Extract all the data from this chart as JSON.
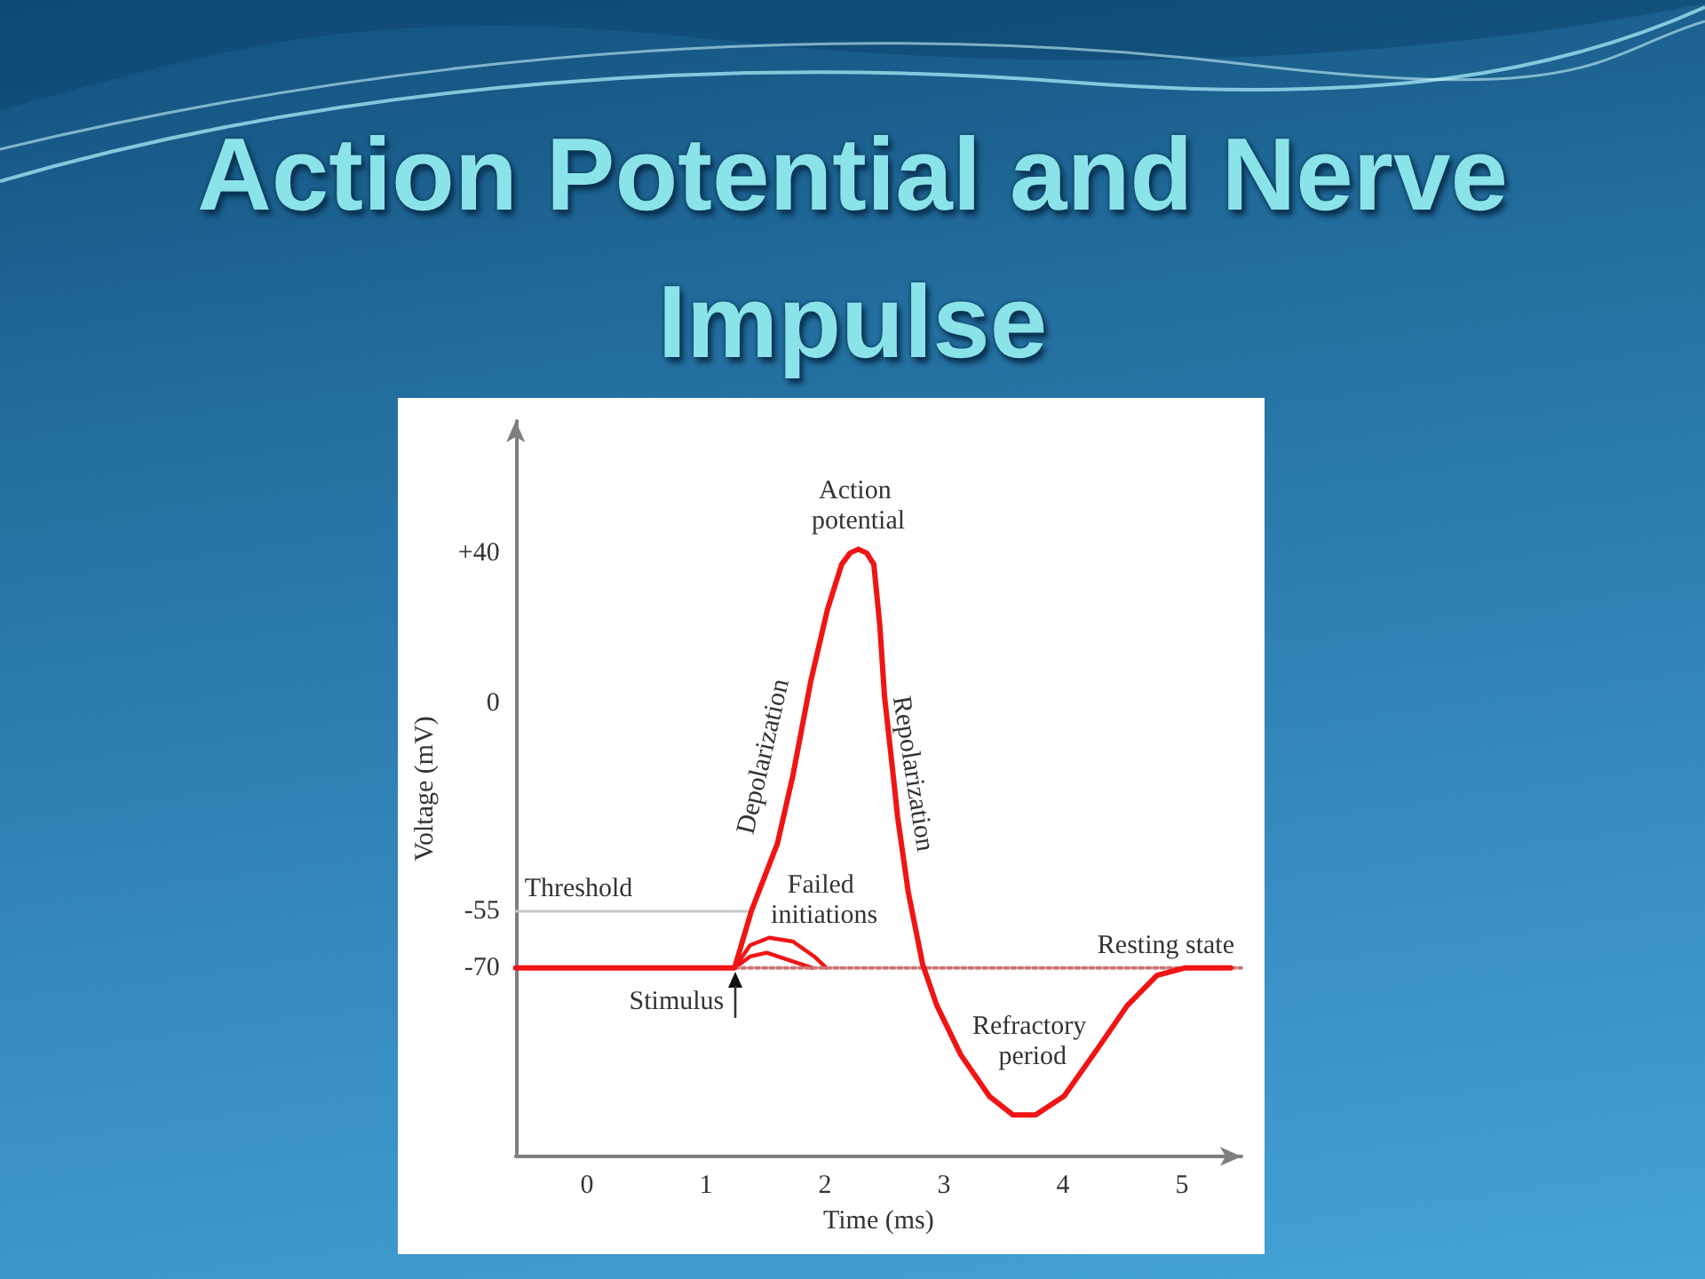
{
  "chart_data": {
    "type": "line",
    "title": "Action Potential and Nerve Impulse",
    "xlabel": "Time (ms)",
    "ylabel": "Voltage (mV)",
    "xlim": [
      -0.6,
      5.5
    ],
    "xticks": [
      0,
      1,
      2,
      3,
      4,
      5
    ],
    "ylim": [
      -120,
      75
    ],
    "yticks": [
      {
        "value": 40,
        "label": "+40"
      },
      0,
      -55,
      -70
    ],
    "grid": false,
    "legend": false,
    "marker": "none",
    "series": [
      {
        "color": "#f01414",
        "x": [
          -0.6,
          1.24,
          1.38,
          1.6,
          1.73,
          1.88,
          2.02,
          2.14,
          2.21,
          2.28,
          2.35,
          2.41,
          2.46,
          2.5,
          2.58,
          2.61,
          2.7,
          2.82,
          2.94,
          3.14,
          3.38,
          3.58,
          3.77,
          4.01,
          4.3,
          4.54,
          4.79,
          5.03,
          5.41
        ],
        "values": [
          -70,
          -70,
          -55,
          -37,
          -19,
          6,
          25,
          37,
          40,
          41,
          40,
          37,
          21,
          2,
          -21,
          -30,
          -50,
          -69,
          -80,
          -93,
          -104,
          -109,
          -109,
          -104,
          -91,
          -80,
          -72,
          -70,
          -70
        ]
      },
      {
        "color": "#f01414",
        "x": [
          1.24,
          1.37,
          1.53,
          1.73,
          1.91,
          2.01
        ],
        "values": [
          -70,
          -64,
          -62,
          -63,
          -67,
          -70
        ]
      },
      {
        "color": "#f01414",
        "x": [
          1.24,
          1.37,
          1.51,
          1.7,
          1.89
        ],
        "values": [
          -70,
          -67,
          -66,
          -68,
          -70
        ]
      },
      {
        "name": "Threshold",
        "color": "#c8c8c8",
        "x": [
          -0.6,
          1.38
        ],
        "values": [
          -55,
          -55
        ]
      },
      {
        "name": "Resting state",
        "color": "#cc7777",
        "line_style": "dotted",
        "x": [
          1.24,
          5.5
        ],
        "values": [
          -70,
          -70
        ]
      }
    ],
    "annotations": [
      {
        "text": "Action potential",
        "x": 2.28,
        "y": 41
      },
      {
        "text": "Depolarization",
        "x": 1.77,
        "y": -14
      },
      {
        "text": "Repolarization",
        "x": 2.57,
        "y": -19
      },
      {
        "text": "Failed initiations",
        "x": 1.53,
        "y": -62
      },
      {
        "text": "Stimulus",
        "x": 1.24,
        "y": -70
      },
      {
        "text": "Refractory period",
        "x": 3.58,
        "y": -109
      }
    ]
  }
}
